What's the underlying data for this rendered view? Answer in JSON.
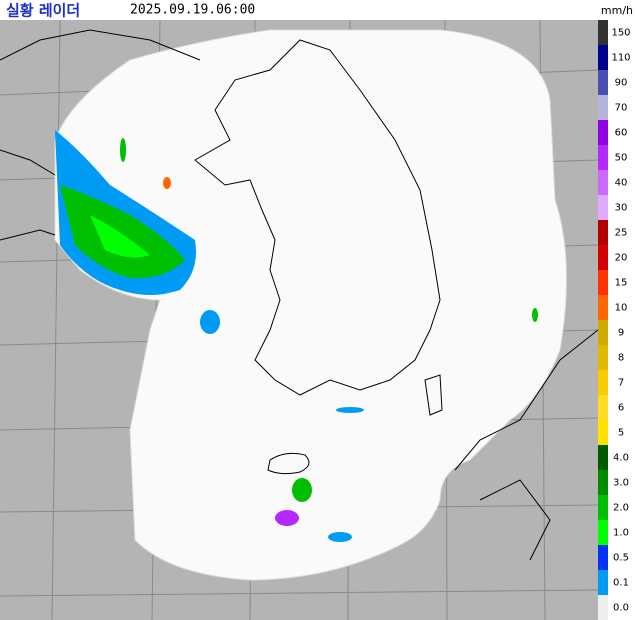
{
  "header": {
    "title": "실황 레이더",
    "time": "2025.09.19.06:00",
    "unit": "mm/h"
  },
  "legend": [
    {
      "label": "150",
      "color": "#333333"
    },
    {
      "label": "110",
      "color": "#000390"
    },
    {
      "label": "90",
      "color": "#4c4eb1"
    },
    {
      "label": "70",
      "color": "#b3b4de"
    },
    {
      "label": "60",
      "color": "#9300e4"
    },
    {
      "label": "50",
      "color": "#b329ff"
    },
    {
      "label": "40",
      "color": "#c969ff"
    },
    {
      "label": "30",
      "color": "#e0a9ff"
    },
    {
      "label": "25",
      "color": "#b40000"
    },
    {
      "label": "20",
      "color": "#d20000"
    },
    {
      "label": "15",
      "color": "#ff3200"
    },
    {
      "label": "10",
      "color": "#ff6600"
    },
    {
      "label": "9",
      "color": "#ccaa00"
    },
    {
      "label": "8",
      "color": "#e0b900"
    },
    {
      "label": "7",
      "color": "#f9cb00"
    },
    {
      "label": "6",
      "color": "#ffdc1f"
    },
    {
      "label": "5",
      "color": "#ffe100"
    },
    {
      "label": "4.0",
      "color": "#005a00"
    },
    {
      "label": "3.0",
      "color": "#008c00"
    },
    {
      "label": "2.0",
      "color": "#00be00"
    },
    {
      "label": "1.0",
      "color": "#00ff00"
    },
    {
      "label": "0.5",
      "color": "#0033f5"
    },
    {
      "label": "0.1",
      "color": "#009bf5"
    },
    {
      "label": "0.0",
      "color": "#eeeeee"
    }
  ]
}
